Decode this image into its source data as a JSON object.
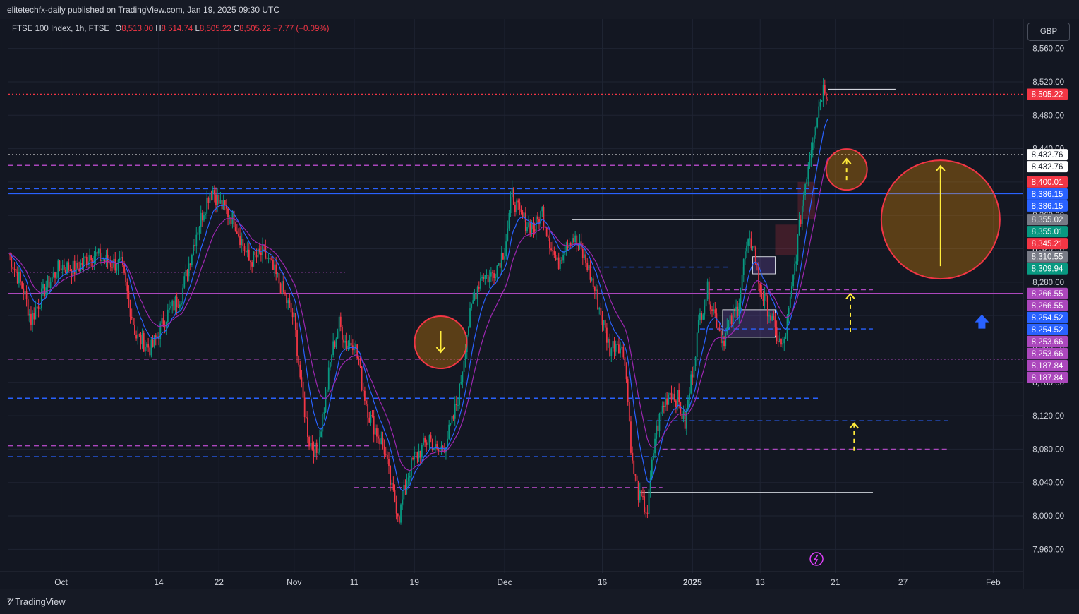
{
  "header": {
    "published": "elitetechfx-daily published on TradingView.com, Jan 19, 2025 09:30 UTC"
  },
  "symbol": {
    "name": "FTSE 100 Index, 1h, FTSE",
    "open_label": "O",
    "open": "8,513.00",
    "high_label": "H",
    "high": "8,514.74",
    "low_label": "L",
    "low": "8,505.22",
    "close_label": "C",
    "close": "8,505.22",
    "change": "−7.77 (−0.09%)"
  },
  "currency_button": "GBP",
  "footer": {
    "brand": "TradingView",
    "logo": "tradingview-logo"
  },
  "chart_data": {
    "type": "candlestick",
    "y_axis": {
      "range": [
        7940,
        8580
      ],
      "ticks": [
        {
          "value": 7960,
          "label": "7,960.00"
        },
        {
          "value": 8000,
          "label": "8,000.00"
        },
        {
          "value": 8040,
          "label": "8,040.00"
        },
        {
          "value": 8080,
          "label": "8,080.00"
        },
        {
          "value": 8120,
          "label": "8,120.00"
        },
        {
          "value": 8160,
          "label": "8,160.00"
        },
        {
          "value": 8200,
          "label": "8,200.00"
        },
        {
          "value": 8240,
          "label": "8,240.00"
        },
        {
          "value": 8280,
          "label": "8,280.00"
        },
        {
          "value": 8320,
          "label": "8,320.00"
        },
        {
          "value": 8360,
          "label": "8,360.00"
        },
        {
          "value": 8400,
          "label": "8,400.00"
        },
        {
          "value": 8440,
          "label": "8,440.00"
        },
        {
          "value": 8480,
          "label": "8,480.00"
        },
        {
          "value": 8520,
          "label": "8,520.00"
        },
        {
          "value": 8560,
          "label": "8,560.00"
        }
      ]
    },
    "x_axis": {
      "ticks": [
        {
          "t": 7,
          "label": "Oct"
        },
        {
          "t": 20,
          "label": "14"
        },
        {
          "t": 28,
          "label": "22"
        },
        {
          "t": 38,
          "label": "Nov"
        },
        {
          "t": 46,
          "label": "11"
        },
        {
          "t": 54,
          "label": "19"
        },
        {
          "t": 66,
          "label": "Dec"
        },
        {
          "t": 79,
          "label": "16"
        },
        {
          "t": 91,
          "label": "2025"
        },
        {
          "t": 100,
          "label": "13"
        },
        {
          "t": 110,
          "label": "21"
        },
        {
          "t": 119,
          "label": "27"
        },
        {
          "t": 131,
          "label": "Feb"
        }
      ],
      "range": [
        0,
        135
      ]
    },
    "price_path": [
      [
        0,
        8315
      ],
      [
        2,
        8270
      ],
      [
        3,
        8235
      ],
      [
        5,
        8275
      ],
      [
        7,
        8300
      ],
      [
        9,
        8295
      ],
      [
        11,
        8315
      ],
      [
        13,
        8305
      ],
      [
        15,
        8300
      ],
      [
        17,
        8215
      ],
      [
        19,
        8200
      ],
      [
        21,
        8240
      ],
      [
        23,
        8265
      ],
      [
        25,
        8340
      ],
      [
        27,
        8395
      ],
      [
        28,
        8375
      ],
      [
        30,
        8355
      ],
      [
        32,
        8305
      ],
      [
        34,
        8315
      ],
      [
        36,
        8280
      ],
      [
        38,
        8235
      ],
      [
        39,
        8150
      ],
      [
        40,
        8090
      ],
      [
        41,
        8075
      ],
      [
        42,
        8130
      ],
      [
        43,
        8195
      ],
      [
        44,
        8230
      ],
      [
        45,
        8205
      ],
      [
        46,
        8210
      ],
      [
        47,
        8160
      ],
      [
        48,
        8120
      ],
      [
        49,
        8100
      ],
      [
        50,
        8080
      ],
      [
        51,
        8030
      ],
      [
        52,
        8000
      ],
      [
        53,
        8045
      ],
      [
        54,
        8070
      ],
      [
        55,
        8080
      ],
      [
        56,
        8095
      ],
      [
        57,
        8075
      ],
      [
        58,
        8085
      ],
      [
        59,
        8110
      ],
      [
        60,
        8150
      ],
      [
        61,
        8220
      ],
      [
        62,
        8265
      ],
      [
        63,
        8290
      ],
      [
        64,
        8285
      ],
      [
        65,
        8300
      ],
      [
        66,
        8320
      ],
      [
        67,
        8385
      ],
      [
        68,
        8360
      ],
      [
        69,
        8350
      ],
      [
        70,
        8345
      ],
      [
        71,
        8365
      ],
      [
        72,
        8330
      ],
      [
        73,
        8300
      ],
      [
        74,
        8325
      ],
      [
        75,
        8335
      ],
      [
        76,
        8320
      ],
      [
        77,
        8300
      ],
      [
        78,
        8270
      ],
      [
        79,
        8235
      ],
      [
        80,
        8200
      ],
      [
        81,
        8210
      ],
      [
        82,
        8190
      ],
      [
        83,
        8060
      ],
      [
        84,
        8020
      ],
      [
        85,
        8005
      ],
      [
        86,
        8095
      ],
      [
        87,
        8130
      ],
      [
        88,
        8150
      ],
      [
        89,
        8140
      ],
      [
        90,
        8110
      ],
      [
        91,
        8175
      ],
      [
        92,
        8240
      ],
      [
        93,
        8270
      ],
      [
        94,
        8240
      ],
      [
        95,
        8210
      ],
      [
        96,
        8230
      ],
      [
        97,
        8250
      ],
      [
        98,
        8315
      ],
      [
        99,
        8330
      ],
      [
        100,
        8270
      ],
      [
        101,
        8250
      ],
      [
        102,
        8220
      ],
      [
        103,
        8200
      ],
      [
        104,
        8255
      ],
      [
        105,
        8330
      ],
      [
        106,
        8400
      ],
      [
        107,
        8455
      ],
      [
        108,
        8500
      ],
      [
        108.5,
        8515
      ],
      [
        109,
        8505
      ]
    ],
    "ema_periods": [
      12,
      24
    ],
    "levels": [
      {
        "value": 8505.22,
        "style": "dotted",
        "color": "#f23645",
        "from": 0
      },
      {
        "value": 8432.76,
        "style": "dotted",
        "color": "#ffffff",
        "from": 0
      },
      {
        "value": 8420,
        "style": "dashed",
        "color": "#ab47bc",
        "from": 0,
        "to": 108
      },
      {
        "value": 8392,
        "style": "dashed",
        "color": "#2962ff",
        "from": 0,
        "to": 108
      },
      {
        "value": 8386.15,
        "style": "solid",
        "color": "#2962ff",
        "from": 0
      },
      {
        "value": 8292,
        "style": "dotted",
        "color": "#ab47bc",
        "from": 0,
        "to": 45
      },
      {
        "value": 8266.55,
        "style": "solid",
        "color": "#ab47bc",
        "from": 0
      },
      {
        "value": 8298,
        "style": "dashed",
        "color": "#2962ff",
        "from": 77,
        "to": 96
      },
      {
        "value": 8271,
        "style": "dashed",
        "color": "#ab47bc",
        "from": 92,
        "to": 115
      },
      {
        "value": 8224,
        "style": "dashed",
        "color": "#2962ff",
        "from": 92,
        "to": 115
      },
      {
        "value": 8187.84,
        "style": "dashed",
        "color": "#ab47bc",
        "from": 0,
        "to": 55
      },
      {
        "value": 8187.84,
        "style": "dotted",
        "color": "#ab47bc",
        "from": 55
      },
      {
        "value": 8141,
        "style": "dashed",
        "color": "#2962ff",
        "from": 0,
        "to": 108
      },
      {
        "value": 8114,
        "style": "dashed",
        "color": "#2962ff",
        "from": 85,
        "to": 125
      },
      {
        "value": 8084,
        "style": "dashed",
        "color": "#ab47bc",
        "from": 0,
        "to": 48
      },
      {
        "value": 8080,
        "style": "dashed",
        "color": "#ab47bc",
        "from": 87,
        "to": 125
      },
      {
        "value": 8071,
        "style": "dashed",
        "color": "#2962ff",
        "from": 0,
        "to": 87
      },
      {
        "value": 8034,
        "style": "dashed",
        "color": "#ab47bc",
        "from": 46,
        "to": 87
      },
      {
        "value": 8028,
        "style": "solid",
        "color": "#d1d4dc",
        "from": 84,
        "to": 115
      },
      {
        "value": 8355.02,
        "style": "solid",
        "color": "#d1d4dc",
        "from": 75,
        "to": 105
      },
      {
        "value": 8511,
        "style": "solid",
        "color": "#d1d4dc",
        "from": 109,
        "to": 118
      }
    ],
    "zones": [
      {
        "from": 105,
        "to": 107.3,
        "top": 8400,
        "bottom": 8355,
        "color": "#f2364533"
      },
      {
        "from": 102,
        "to": 105,
        "top": 8349,
        "bottom": 8312,
        "color": "#f2364533"
      },
      {
        "from": 95,
        "to": 102,
        "top": 8247,
        "bottom": 8214,
        "color": "#7e57c244",
        "border": "#d1d4dc"
      },
      {
        "from": 99,
        "to": 102,
        "top": 8310.55,
        "bottom": 8290,
        "color": "#7e57c244",
        "border": "#d1d4dc"
      }
    ],
    "annotations": [
      {
        "kind": "circle-arrow-down",
        "t": 57.5,
        "value": 8208,
        "r": 37
      },
      {
        "kind": "circle-arrow-up-dashed",
        "t": 111.5,
        "value": 8415,
        "r": 29
      },
      {
        "kind": "circle-arrow-up",
        "t": 124,
        "value": 8355,
        "r": 84
      },
      {
        "kind": "arrow-up-dashed",
        "t": 112,
        "from": 8220,
        "to": 8266
      },
      {
        "kind": "arrow-up-dashed",
        "t": 112.5,
        "from": 8078,
        "to": 8111
      },
      {
        "kind": "blue-arrow-up",
        "t": 129.5,
        "value": 8232
      }
    ],
    "price_labels": [
      {
        "value": 8505.22,
        "label": "8,505.22",
        "bg": "#f23645",
        "fg": "#ffffff"
      },
      {
        "value": 8432.76,
        "label": "8,432.76",
        "bg": "#ffffff",
        "fg": "#131722"
      },
      {
        "value": 8432.76,
        "label": "8,432.76",
        "bg": "#ffffff",
        "fg": "#131722",
        "row": 1
      },
      {
        "value": 8400.01,
        "label": "8,400.01",
        "bg": "#f23645",
        "fg": "#ffffff"
      },
      {
        "value": 8386.15,
        "label": "8,386.15",
        "bg": "#2962ff",
        "fg": "#ffffff"
      },
      {
        "value": 8386.15,
        "label": "8,386.15",
        "bg": "#2962ff",
        "fg": "#ffffff",
        "row": 1
      },
      {
        "value": 8355.02,
        "label": "8,355.02",
        "bg": "#787b86",
        "fg": "#ffffff"
      },
      {
        "value": 8355.01,
        "label": "8,355.01",
        "bg": "#089981",
        "fg": "#ffffff"
      },
      {
        "value": 8345.21,
        "label": "8,345.21",
        "bg": "#f23645",
        "fg": "#ffffff"
      },
      {
        "value": 8310.55,
        "label": "8,310.55",
        "bg": "#787b86",
        "fg": "#ffffff"
      },
      {
        "value": 8309.94,
        "label": "8,309.94",
        "bg": "#089981",
        "fg": "#ffffff"
      },
      {
        "value": 8266.55,
        "label": "8,266.55",
        "bg": "#ab47bc",
        "fg": "#ffffff"
      },
      {
        "value": 8266.55,
        "label": "8,266.55",
        "bg": "#ab47bc",
        "fg": "#ffffff",
        "row": 1
      },
      {
        "value": 8254.52,
        "label": "8,254.52",
        "bg": "#2962ff",
        "fg": "#ffffff"
      },
      {
        "value": 8254.52,
        "label": "8,254.52",
        "bg": "#2962ff",
        "fg": "#ffffff",
        "row": 1
      },
      {
        "value": 8253.66,
        "label": "8,253.66",
        "bg": "#ab47bc",
        "fg": "#ffffff"
      },
      {
        "value": 8253.66,
        "label": "8,253.66",
        "bg": "#ab47bc",
        "fg": "#ffffff",
        "row": 1
      },
      {
        "value": 8187.84,
        "label": "8,187.84",
        "bg": "#ab47bc",
        "fg": "#ffffff"
      },
      {
        "value": 8187.84,
        "label": "8,187.84",
        "bg": "#ab47bc",
        "fg": "#ffffff",
        "row": 1
      }
    ]
  }
}
